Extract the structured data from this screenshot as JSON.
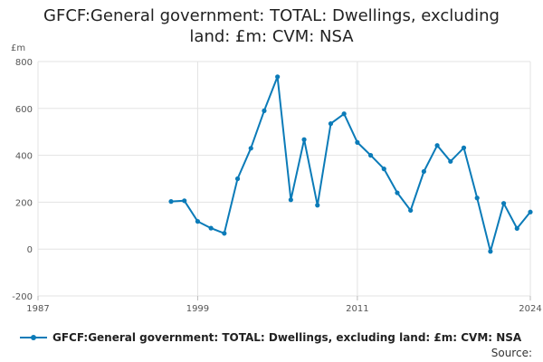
{
  "chart_data": {
    "type": "line",
    "title": "GFCF:General government: TOTAL: Dwellings, excluding land: £m: CVM: NSA",
    "title_lines": [
      "GFCF:General government: TOTAL: Dwellings, excluding",
      "land: £m: CVM: NSA"
    ],
    "ylabel": "£m",
    "xlabel": "",
    "xlim": [
      1987,
      2024
    ],
    "ylim": [
      -200,
      800
    ],
    "x_ticks": [
      "1987",
      "1999",
      "2011",
      "2024"
    ],
    "y_ticks": [
      "800",
      "600",
      "400",
      "200",
      "0",
      "-200"
    ],
    "grid": true,
    "legend_position": "bottom",
    "series": [
      {
        "name": "GFCF:General government: TOTAL: Dwellings, excluding land: £m: CVM: NSA",
        "color": "#0b7bb8",
        "x": [
          1997,
          1998,
          1999,
          2000,
          2001,
          2002,
          2003,
          2004,
          2005,
          2006,
          2007,
          2008,
          2009,
          2010,
          2011,
          2012,
          2013,
          2014,
          2015,
          2016,
          2017,
          2018,
          2019,
          2020,
          2021,
          2022,
          2023,
          2024
        ],
        "values": [
          203,
          206,
          118,
          89,
          67,
          300,
          430,
          590,
          735,
          210,
          467,
          187,
          535,
          577,
          455,
          400,
          342,
          240,
          165,
          331,
          442,
          374,
          432,
          218,
          -10,
          195,
          88,
          158
        ]
      }
    ]
  },
  "source_label": "Source:"
}
